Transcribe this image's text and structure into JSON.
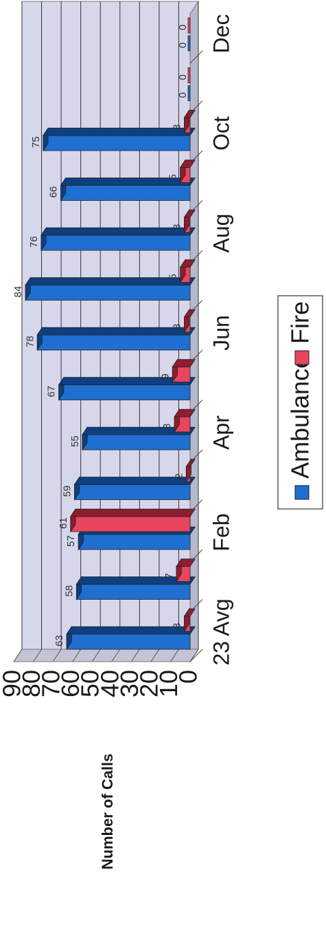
{
  "chart_data": {
    "type": "bar",
    "categories": [
      "23 Avg",
      "",
      "Feb",
      "",
      "Apr",
      "",
      "Jun",
      "",
      "Aug",
      "",
      "Oct",
      "",
      "Dec"
    ],
    "series": [
      {
        "name": "Ambulance",
        "color": "#1f6fd0",
        "values": [
          63,
          58,
          57,
          59,
          55,
          67,
          78,
          84,
          76,
          66,
          75,
          0,
          0
        ]
      },
      {
        "name": "Fire",
        "color": "#e8455f",
        "values": [
          3,
          7,
          61,
          2,
          8,
          9,
          3,
          5,
          3,
          5,
          3,
          0,
          0
        ]
      }
    ],
    "category_labels_shown": [
      "23 Avg",
      "Feb",
      "Apr",
      "Jun",
      "Aug",
      "Oct",
      "Dec"
    ],
    "ylabel": "Number of Calls",
    "yticks": [
      "0",
      "10",
      "20",
      "30",
      "40",
      "50",
      "60",
      "70",
      "80",
      "90"
    ],
    "ylim": [
      0,
      90
    ],
    "grid": true,
    "legend_placement": "bottom",
    "colors": {
      "wall": "#d7d7ec",
      "floor": "#b8b8cc",
      "grid": "#333333"
    }
  }
}
